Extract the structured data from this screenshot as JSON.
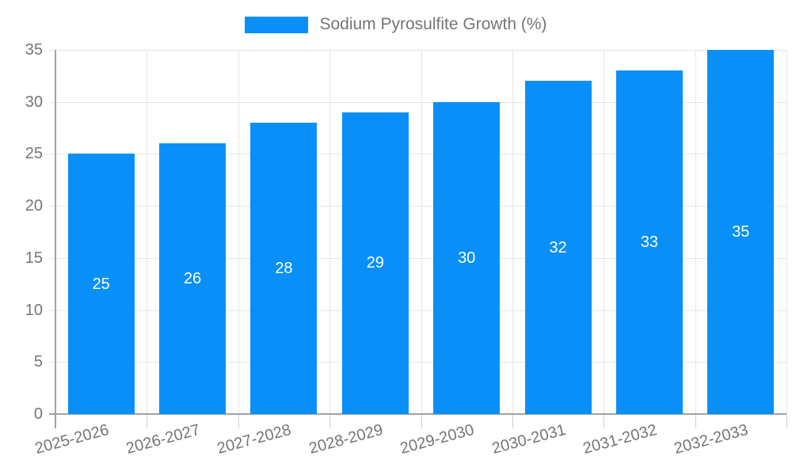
{
  "chart_data": {
    "type": "bar",
    "title": "",
    "legend_position": "top",
    "categories": [
      "2025-2026",
      "2026-2027",
      "2027-2028",
      "2028-2029",
      "2029-2030",
      "2030-2031",
      "2031-2032",
      "2032-2033"
    ],
    "series": [
      {
        "name": "Sodium Pyrosulfite Growth (%)",
        "values": [
          25,
          26,
          28,
          29,
          30,
          32,
          33,
          35
        ]
      }
    ],
    "bar_value_labels": [
      25,
      26,
      28,
      29,
      30,
      32,
      33,
      35
    ],
    "yticks": [
      0,
      5,
      10,
      15,
      20,
      25,
      30,
      35
    ],
    "ylim": [
      0,
      35
    ],
    "xlabel": "",
    "ylabel": "",
    "grid": true,
    "colors": {
      "bar": "#0890f8",
      "text": "#757575",
      "grid": "#e6e6e6",
      "bottom_tick": "#cfcfcf",
      "axis": "#a3a3a3",
      "value_label": "#ffffff",
      "background": "#ffffff"
    }
  }
}
